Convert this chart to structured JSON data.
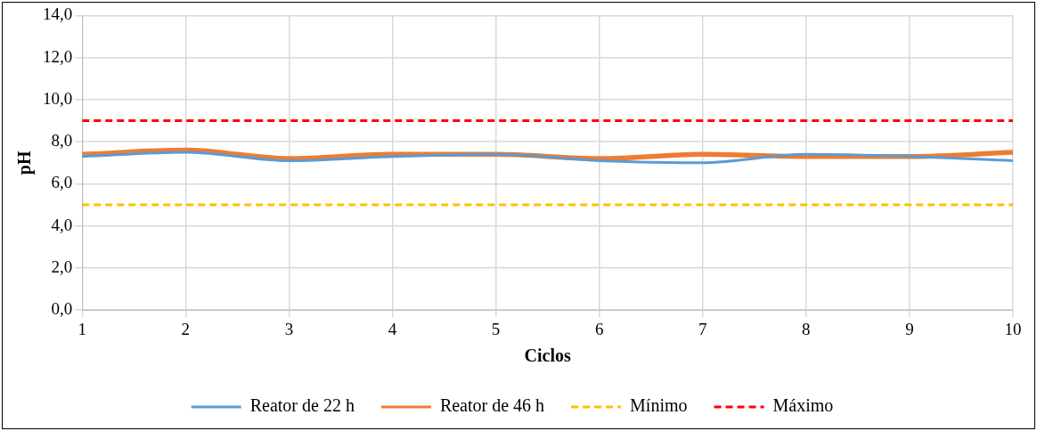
{
  "chart_data": {
    "type": "line",
    "xlabel": "Ciclos",
    "ylabel": "pH",
    "x": [
      1,
      2,
      3,
      4,
      5,
      6,
      7,
      8,
      9,
      10
    ],
    "series": [
      {
        "name": "Reator de 22 h",
        "color": "#5b9bd5",
        "values": [
          7.3,
          7.5,
          7.1,
          7.3,
          7.4,
          7.1,
          7.0,
          7.4,
          7.3,
          7.1
        ]
      },
      {
        "name": "Reator de 46 h",
        "color": "#ed7d31",
        "values": [
          7.4,
          7.6,
          7.2,
          7.4,
          7.4,
          7.2,
          7.4,
          7.3,
          7.3,
          7.5
        ]
      },
      {
        "name": "Mínimo",
        "color": "#ffc000",
        "line_style": "dashed",
        "values": [
          5,
          5,
          5,
          5,
          5,
          5,
          5,
          5,
          5,
          5
        ]
      },
      {
        "name": "Máximo",
        "color": "#ff0000",
        "line_style": "dashed",
        "values": [
          9,
          9,
          9,
          9,
          9,
          9,
          9,
          9,
          9,
          9
        ]
      }
    ],
    "xlim": [
      1,
      10
    ],
    "xticks": [
      1,
      2,
      3,
      4,
      5,
      6,
      7,
      8,
      9,
      10
    ],
    "ylim": [
      0,
      14
    ],
    "yticks": [
      {
        "value": 0,
        "label": "0,0"
      },
      {
        "value": 2,
        "label": "2,0"
      },
      {
        "value": 4,
        "label": "4,0"
      },
      {
        "value": 6,
        "label": "6,0"
      },
      {
        "value": 8,
        "label": "8,0"
      },
      {
        "value": 10,
        "label": "10,0"
      },
      {
        "value": 12,
        "label": "12,0"
      },
      {
        "value": 14,
        "label": "14,0"
      }
    ],
    "grid": true,
    "legend": "bottom",
    "marker": "none"
  }
}
